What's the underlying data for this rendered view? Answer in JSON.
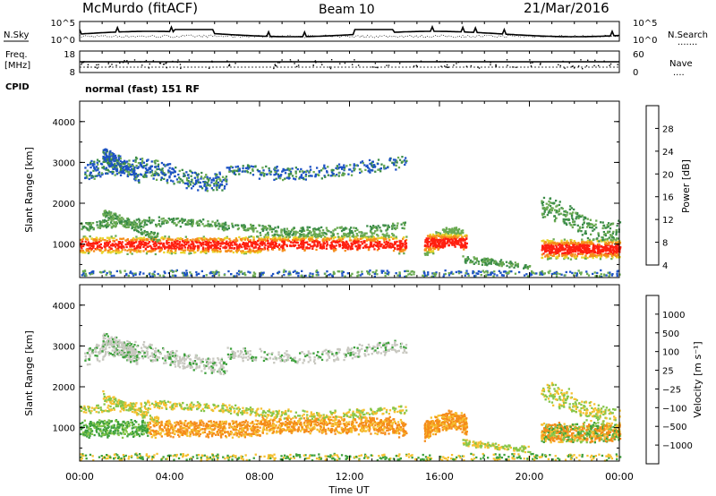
{
  "header": {
    "station": "McMurdo (fitACF)",
    "beam": "Beam 10",
    "date": "21/Mar/2016"
  },
  "noise_panel": {
    "left_label": "N.Sky",
    "right_label": "N.Search",
    "left_ticks": [
      "10^5",
      "10^0"
    ],
    "right_ticks": [
      "10^5",
      "10^0"
    ],
    "dots": "......."
  },
  "freq_panel": {
    "left_label_1": "Freq.",
    "left_label_2": "[MHz]",
    "left_ticks": [
      "18",
      "8"
    ],
    "right_label": "Nave",
    "right_ticks": [
      "60",
      "0"
    ],
    "dots": "....",
    "cpid_label": "CPID",
    "mode": "normal (fast) 151 RF"
  },
  "chart_data": [
    {
      "type": "heatmap",
      "name": "power",
      "ylabel": "Slant Range [km]",
      "xlim": [
        0,
        24
      ],
      "ylim": [
        180,
        4500
      ],
      "yticks": [
        1000,
        2000,
        3000,
        4000
      ],
      "colorbar_label": "Power [dB]",
      "colorbar_ticks": [
        "28",
        "24",
        "20",
        "16",
        "12",
        "8",
        "4"
      ],
      "colors": [
        "#0000ee",
        "#1c52c4",
        "#3b8c48",
        "#6aaa52",
        "#e8d42a",
        "#f58c19",
        "#ff2010"
      ]
    },
    {
      "type": "heatmap",
      "name": "velocity",
      "ylabel": "Slant Range [km]",
      "xlabel": "Time UT",
      "xlim": [
        0,
        24
      ],
      "ylim": [
        180,
        4500
      ],
      "yticks": [
        1000,
        2000,
        3000,
        4000
      ],
      "xticks": [
        "00:00",
        "04:00",
        "08:00",
        "12:00",
        "16:00",
        "20:00",
        "00:00"
      ],
      "colorbar_label": "Velocity [m s⁻¹]",
      "colorbar_ticks": [
        "1000",
        "500",
        "100",
        "25",
        "−25",
        "−100",
        "−500",
        "−1000"
      ],
      "colors": [
        "#1c3bb0",
        "#2c7a50",
        "#3ea13c",
        "#86c64a",
        "#c8c8c0",
        "#f5c030",
        "#f58c19",
        "#f55c10",
        "#ee1010"
      ]
    }
  ]
}
